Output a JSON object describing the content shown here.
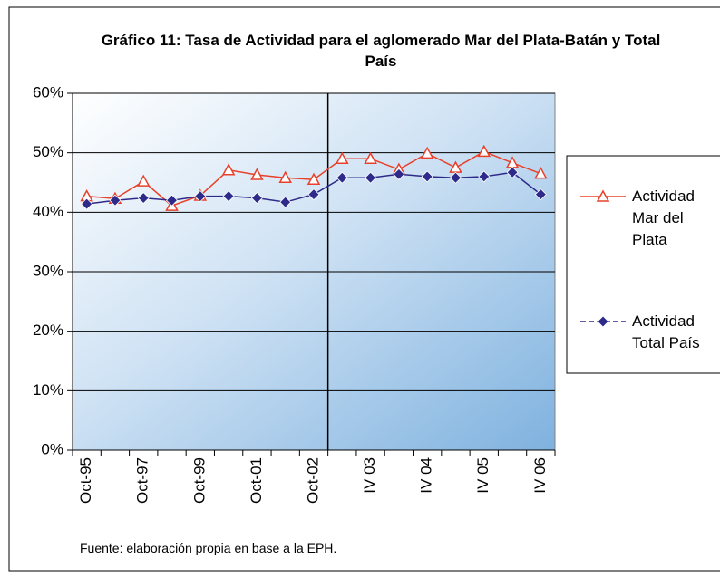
{
  "chart_data": {
    "type": "line",
    "title": "Gráfico 11: Tasa de Actividad para el aglomerado Mar del Plata-Batán y Total País",
    "note": "Fuente: elaboración propia en base a la EPH.",
    "categories": [
      "Oct-95",
      null,
      "Oct-97",
      null,
      "Oct-99",
      null,
      "Oct-01",
      null,
      "Oct-02",
      null,
      "IV 03",
      null,
      "IV 04",
      null,
      "IV 05",
      null,
      "IV 06"
    ],
    "series": [
      {
        "name": "Actividad Mar del Plata",
        "color": "#e8402a",
        "marker": "triangle",
        "values": [
          42.7,
          42.3,
          45.2,
          41.1,
          42.8,
          47.1,
          46.3,
          45.8,
          45.5,
          49.0,
          49.0,
          47.2,
          49.9,
          47.5,
          50.2,
          48.3,
          46.5
        ]
      },
      {
        "name": "Actividad Total País",
        "color": "#2e2a8a",
        "marker": "diamond",
        "values": [
          41.4,
          42.0,
          42.4,
          42.0,
          42.7,
          42.7,
          42.4,
          41.7,
          43.0,
          45.8,
          45.8,
          46.4,
          46.0,
          45.8,
          46.0,
          46.7,
          43.0
        ]
      }
    ],
    "ylim": [
      0,
      60
    ],
    "yticks": [
      {
        "value": 0,
        "label": "0%"
      },
      {
        "value": 10,
        "label": "10%"
      },
      {
        "value": 20,
        "label": "20%"
      },
      {
        "value": 30,
        "label": "30%"
      },
      {
        "value": 40,
        "label": "40%"
      },
      {
        "value": 50,
        "label": "50%"
      },
      {
        "value": 60,
        "label": "60%"
      }
    ],
    "grid": true,
    "legend": "right"
  }
}
